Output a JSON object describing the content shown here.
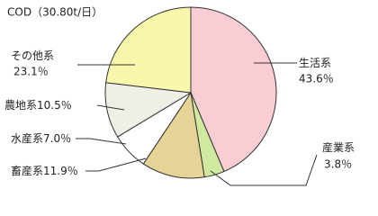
{
  "chart_data": {
    "type": "pie",
    "title": "COD（30.80t/日）",
    "categories": [
      "生活系",
      "産業系",
      "畜産系",
      "水産系",
      "農地系",
      "その他系"
    ],
    "values": [
      43.6,
      3.8,
      11.9,
      7.0,
      10.5,
      23.1
    ],
    "value_labels": [
      "43.6％",
      "3.8％",
      "11.9％",
      "7.0％",
      "10.5％",
      "23.1％"
    ],
    "colors": [
      "#f9cdd3",
      "#cfe9a0",
      "#e6d398",
      "#ffffff",
      "#eef0e6",
      "#f9f7ac"
    ]
  }
}
